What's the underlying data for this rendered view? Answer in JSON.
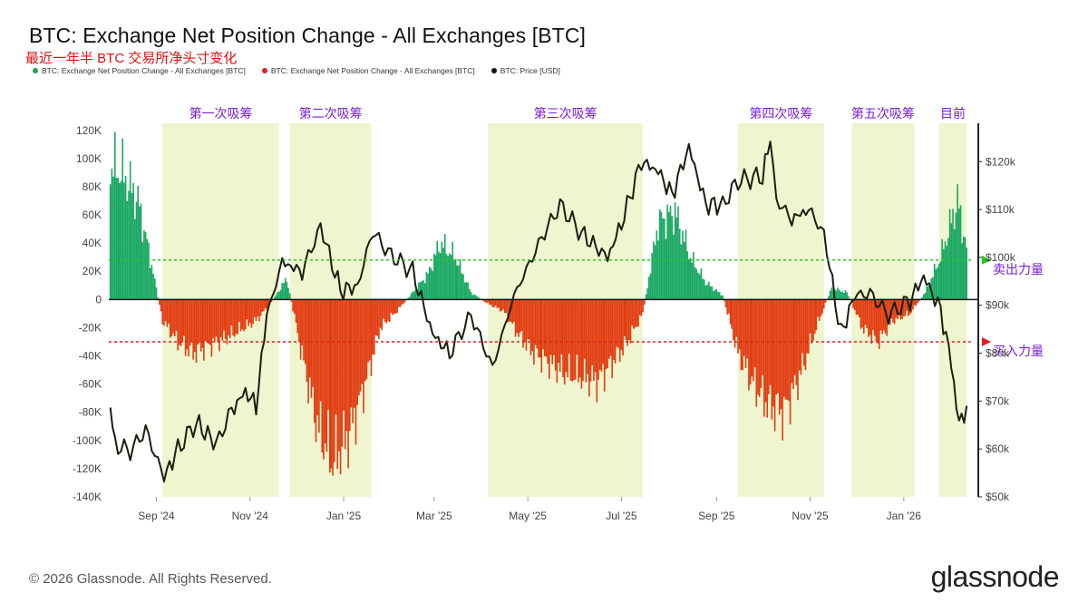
{
  "header": {
    "title": "BTC: Exchange Net Position Change - All Exchanges [BTC]",
    "subtitle": "最近一年半 BTC 交易所净头寸变化"
  },
  "legend": [
    {
      "label": "BTC: Exchange Net Position Change - All Exchanges [BTC]",
      "color": "#1aa35a"
    },
    {
      "label": "BTC: Exchange Net Position Change - All Exchanges [BTC]",
      "color": "#e02020"
    },
    {
      "label": "BTC: Price [USD]",
      "color": "#111111"
    }
  ],
  "footer": {
    "copyright": "© 2026 Glassnode. All Rights Reserved.",
    "brand": "glassnode"
  },
  "chart_data": {
    "type": "area",
    "x_tick_labels": [
      "Sep '24",
      "Nov '24",
      "Jan '25",
      "Mar '25",
      "May '25",
      "Jul '25",
      "Sep '25",
      "Nov '25",
      "Jan '26"
    ],
    "x_tick_dates": [
      "2024-09-01",
      "2024-11-01",
      "2025-01-01",
      "2025-03-01",
      "2025-05-01",
      "2025-07-01",
      "2025-09-01",
      "2025-11-01",
      "2026-01-01"
    ],
    "x_range": [
      "2024-08-01",
      "2026-02-15"
    ],
    "y_left": {
      "min": -140000,
      "max": 125000,
      "ticks": [
        120000,
        100000,
        80000,
        60000,
        40000,
        20000,
        0,
        -20000,
        -40000,
        -60000,
        -80000,
        -100000,
        -120000,
        -140000
      ],
      "tick_labels": [
        "120K",
        "100K",
        "80K",
        "60K",
        "40K",
        "20K",
        "0",
        "-20K",
        "-40K",
        "-60K",
        "-80K",
        "-100K",
        "-120K",
        "-140K"
      ]
    },
    "y_right": {
      "min": 50000,
      "max": 128000,
      "ticks": [
        120000,
        110000,
        100000,
        90000,
        80000,
        70000,
        60000,
        50000
      ],
      "tick_labels": [
        "$120k",
        "$110k",
        "$100k",
        "$90k",
        "$80k",
        "$70k",
        "$60k",
        "$50k"
      ]
    },
    "reference_lines": [
      {
        "y": 28000,
        "color": "#22cc22",
        "label": "卖出力量"
      },
      {
        "y": -30000,
        "color": "#e02020",
        "label": "买入力量"
      }
    ],
    "highlight_regions": [
      {
        "start": "2024-09-05",
        "end": "2024-11-20",
        "label": "第一次吸筹"
      },
      {
        "start": "2024-11-27",
        "end": "2025-01-19",
        "label": "第二次吸筹"
      },
      {
        "start": "2025-04-05",
        "end": "2025-07-15",
        "label": "第三次吸筹"
      },
      {
        "start": "2025-09-15",
        "end": "2025-11-10",
        "label": "第四次吸筹"
      },
      {
        "start": "2025-11-28",
        "end": "2026-01-08",
        "label": "第五次吸筹"
      },
      {
        "start": "2026-01-24",
        "end": "2026-02-11",
        "label": "目前"
      }
    ],
    "series": [
      {
        "name": "BTC: Exchange Net Position Change - All Exchanges [BTC]",
        "axis": "left",
        "x": [
          "2024-08-02",
          "2024-08-10",
          "2024-08-20",
          "2024-08-28",
          "2024-09-05",
          "2024-09-15",
          "2024-09-25",
          "2024-10-05",
          "2024-10-15",
          "2024-10-25",
          "2024-11-05",
          "2024-11-15",
          "2024-11-25",
          "2024-12-05",
          "2024-12-15",
          "2024-12-25",
          "2025-01-05",
          "2025-01-15",
          "2025-01-25",
          "2025-02-05",
          "2025-02-15",
          "2025-02-25",
          "2025-03-05",
          "2025-03-15",
          "2025-03-25",
          "2025-04-05",
          "2025-04-15",
          "2025-04-25",
          "2025-05-05",
          "2025-05-15",
          "2025-05-25",
          "2025-06-05",
          "2025-06-15",
          "2025-06-25",
          "2025-07-05",
          "2025-07-15",
          "2025-07-25",
          "2025-08-05",
          "2025-08-15",
          "2025-08-25",
          "2025-09-05",
          "2025-09-15",
          "2025-09-25",
          "2025-10-05",
          "2025-10-15",
          "2025-10-25",
          "2025-11-05",
          "2025-11-15",
          "2025-11-25",
          "2025-12-05",
          "2025-12-15",
          "2025-12-25",
          "2026-01-05",
          "2026-01-15",
          "2026-01-25",
          "2026-02-05",
          "2026-02-11"
        ],
        "values": [
          95000,
          90000,
          70000,
          30000,
          -15000,
          -30000,
          -38000,
          -33000,
          -28000,
          -22000,
          -15000,
          -2000,
          15000,
          -40000,
          -90000,
          -115000,
          -95000,
          -60000,
          -20000,
          -8000,
          5000,
          18000,
          40000,
          30000,
          5000,
          -3000,
          -8000,
          -25000,
          -38000,
          -45000,
          -52000,
          -55000,
          -58000,
          -45000,
          -30000,
          -10000,
          55000,
          62000,
          30000,
          12000,
          3000,
          -38000,
          -60000,
          -75000,
          -80000,
          -55000,
          -20000,
          8000,
          5000,
          -20000,
          -30000,
          -15000,
          -10000,
          5000,
          30000,
          70000,
          35000
        ]
      },
      {
        "name": "BTC: Price [USD]",
        "axis": "right",
        "x": [
          "2024-08-02",
          "2024-08-05",
          "2024-08-15",
          "2024-08-25",
          "2024-09-06",
          "2024-09-15",
          "2024-09-27",
          "2024-10-10",
          "2024-10-20",
          "2024-10-29",
          "2024-11-05",
          "2024-11-12",
          "2024-11-22",
          "2024-12-05",
          "2024-12-17",
          "2024-12-30",
          "2025-01-10",
          "2025-01-20",
          "2025-01-30",
          "2025-02-15",
          "2025-02-28",
          "2025-03-11",
          "2025-03-25",
          "2025-04-08",
          "2025-04-22",
          "2025-05-10",
          "2025-05-22",
          "2025-06-05",
          "2025-06-22",
          "2025-07-01",
          "2025-07-14",
          "2025-07-25",
          "2025-08-03",
          "2025-08-14",
          "2025-08-25",
          "2025-09-05",
          "2025-09-15",
          "2025-10-01",
          "2025-10-06",
          "2025-10-10",
          "2025-10-20",
          "2025-10-31",
          "2025-11-10",
          "2025-11-21",
          "2025-11-30",
          "2025-12-10",
          "2025-12-22",
          "2026-01-05",
          "2026-01-14",
          "2026-01-25",
          "2026-02-01",
          "2026-02-06",
          "2026-02-11"
        ],
        "values": [
          68000,
          61000,
          59500,
          64000,
          54000,
          60000,
          65500,
          61000,
          68000,
          72000,
          69000,
          88000,
          99000,
          97000,
          106500,
          93000,
          94000,
          105500,
          101000,
          97000,
          84000,
          80000,
          88000,
          77000,
          92000,
          104000,
          111000,
          105000,
          100000,
          107000,
          120000,
          118000,
          113000,
          123000,
          111000,
          111000,
          116000,
          117000,
          124500,
          112000,
          108000,
          110000,
          105000,
          84000,
          92000,
          92500,
          88000,
          91000,
          96000,
          89000,
          78000,
          65000,
          69000
        ]
      }
    ]
  }
}
